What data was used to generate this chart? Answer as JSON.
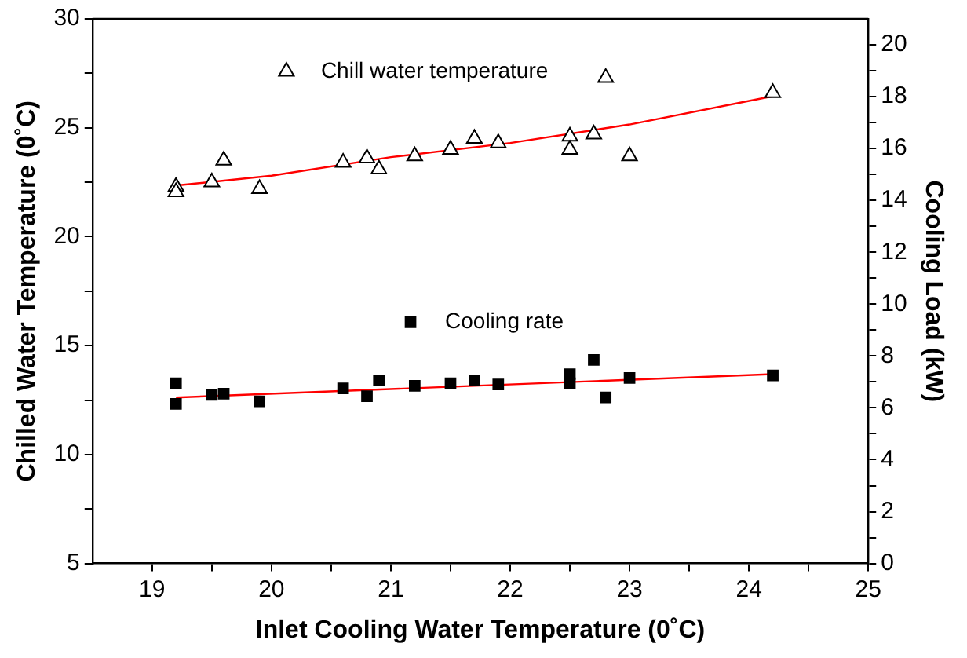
{
  "chart_data": {
    "type": "scatter",
    "xlabel": "Inlet Cooling Water Temperature (0˚C)",
    "ylabel": "Chilled Water Temperature (0˚C)",
    "y2label": "Cooling Load (kW)",
    "xlim": [
      18.5,
      25
    ],
    "xticks": [
      19,
      {
        "value": 19.5,
        "label": null
      },
      20,
      {
        "value": 20.5,
        "label": null
      },
      21,
      {
        "value": 21.5,
        "label": null
      },
      22,
      {
        "value": 22.5,
        "label": null
      },
      23,
      {
        "value": 23.5,
        "label": null
      },
      24,
      {
        "value": 24.5,
        "label": null
      },
      25
    ],
    "ylim": [
      5,
      30
    ],
    "yticks": [
      5,
      {
        "value": 7.5,
        "label": null
      },
      10,
      {
        "value": 12.5,
        "label": null
      },
      15,
      {
        "value": 17.5,
        "label": null
      },
      20,
      {
        "value": 22.5,
        "label": null
      },
      25,
      {
        "value": 27.5,
        "label": null
      },
      30
    ],
    "y2lim": [
      0,
      21
    ],
    "y2ticks": [
      0,
      {
        "value": 1,
        "label": null
      },
      2,
      {
        "value": 3,
        "label": null
      },
      4,
      {
        "value": 5,
        "label": null
      },
      6,
      {
        "value": 7,
        "label": null
      },
      8,
      {
        "value": 9,
        "label": null
      },
      10,
      {
        "value": 11,
        "label": null
      },
      12,
      {
        "value": 13,
        "label": null
      },
      14,
      {
        "value": 15,
        "label": null
      },
      16,
      {
        "value": 17,
        "label": null
      },
      18,
      {
        "value": 19,
        "label": null
      },
      20
    ],
    "grid": false,
    "legend": "top",
    "series": [
      {
        "name": "Chill water temperature",
        "marker": "triangle",
        "color": "#000000",
        "x": [
          19.2,
          19.2,
          19.5,
          19.6,
          19.9,
          20.6,
          20.8,
          20.9,
          21.2,
          21.5,
          21.7,
          21.9,
          22.5,
          22.5,
          22.7,
          22.8,
          23.0,
          24.2
        ],
        "values": [
          22.3,
          22.05,
          22.5,
          23.5,
          22.2,
          23.4,
          23.6,
          23.1,
          23.7,
          24.0,
          24.5,
          24.3,
          24.6,
          24.0,
          24.7,
          27.3,
          23.7,
          26.6
        ]
      },
      {
        "type": "line",
        "marker": "none",
        "line_style": "solid",
        "color": "#ff0000",
        "x": [
          19.2,
          20,
          21,
          22,
          23,
          24.2
        ],
        "values": [
          22.35,
          22.8,
          23.65,
          24.3,
          25.15,
          26.45
        ]
      },
      {
        "name": "Cooling rate",
        "marker": "square",
        "axis": "y2",
        "color": "#000000",
        "x": [
          19.2,
          19.2,
          19.5,
          19.6,
          19.9,
          20.6,
          20.8,
          20.9,
          21.2,
          21.5,
          21.7,
          21.9,
          22.5,
          22.5,
          22.7,
          22.8,
          23.0,
          24.2
        ],
        "values": [
          6.95,
          6.15,
          6.5,
          6.55,
          6.25,
          6.75,
          6.45,
          7.05,
          6.85,
          6.95,
          7.05,
          6.9,
          7.3,
          6.95,
          7.85,
          6.4,
          7.15,
          7.25
        ]
      },
      {
        "type": "line",
        "marker": "none",
        "line_style": "solid",
        "axis": "y2",
        "color": "#ff0000",
        "x": [
          19.2,
          24.2
        ],
        "values": [
          6.4,
          7.3
        ]
      }
    ]
  }
}
